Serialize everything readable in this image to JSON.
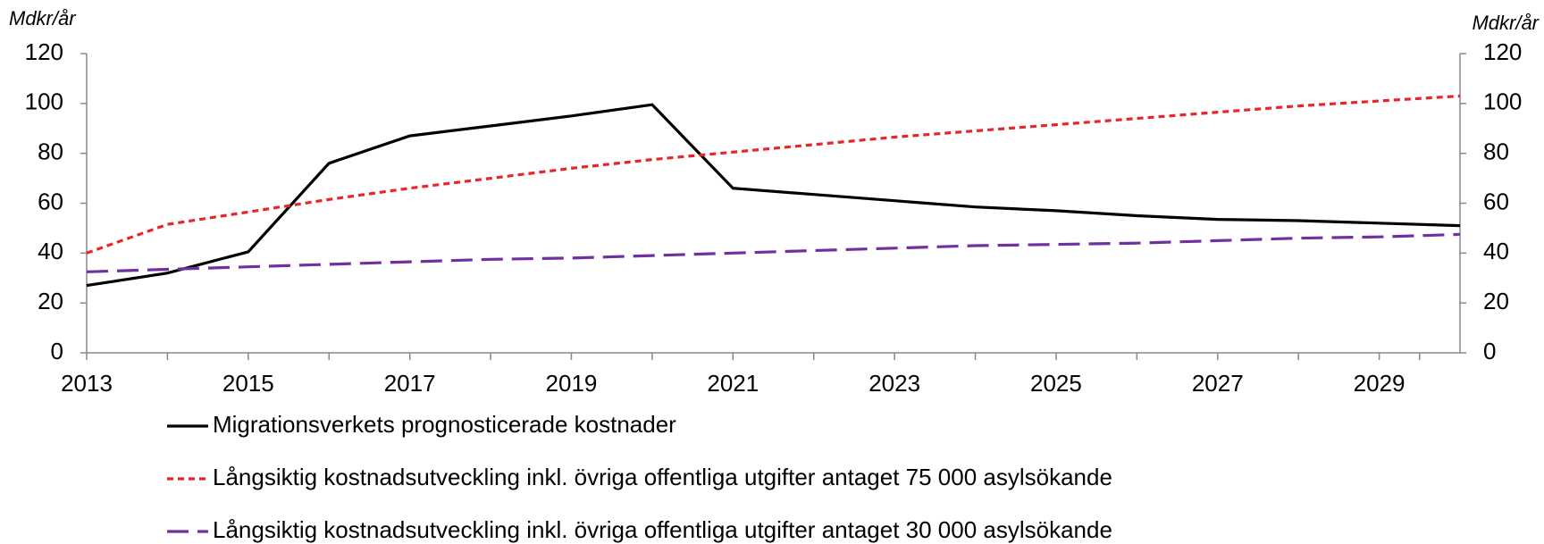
{
  "chart_data": {
    "type": "line",
    "y_label": "Mdkr/år",
    "y2_label": "Mdkr/år",
    "x": [
      2013,
      2014,
      2015,
      2016,
      2017,
      2018,
      2019,
      2020,
      2021,
      2022,
      2023,
      2024,
      2025,
      2026,
      2027,
      2028,
      2029,
      2030
    ],
    "xlim": [
      2013,
      2030
    ],
    "xticks": [
      2013,
      2015,
      2017,
      2019,
      2021,
      2023,
      2025,
      2027,
      2029
    ],
    "ylim": [
      0,
      120
    ],
    "yticks": [
      0,
      20,
      40,
      60,
      80,
      100,
      120
    ],
    "y2lim": [
      0,
      120
    ],
    "y2ticks": [
      0,
      20,
      40,
      60,
      80,
      100,
      120
    ],
    "grid": false,
    "series": [
      {
        "name": "Migrationsverkets prognosticerade kostnader",
        "color": "#000000",
        "dash": "solid",
        "values": [
          27,
          32,
          40.5,
          76,
          87,
          91,
          95,
          99.5,
          66,
          63.5,
          61,
          58.5,
          57,
          55,
          53.5,
          53,
          52,
          51
        ]
      },
      {
        "name": "Långsiktig kostnadsutveckling inkl. övriga offentliga utgifter antaget 75 000 asylsökande",
        "color": "#e8262a",
        "dash": "short",
        "values": [
          40,
          51.5,
          56.5,
          61.5,
          66,
          70,
          74,
          77.5,
          80.5,
          83.5,
          86.5,
          89,
          91.5,
          94,
          96.5,
          99,
          101,
          103
        ]
      },
      {
        "name": "Långsiktig kostnadsutveckling inkl. övriga offentliga utgifter antaget 30 000 asylsökande",
        "color": "#7030a0",
        "dash": "long",
        "values": [
          32.5,
          33.5,
          34.5,
          35.5,
          36.5,
          37.5,
          38,
          39,
          40,
          41,
          42,
          43,
          43.5,
          44,
          45,
          46,
          46.5,
          47.5
        ]
      }
    ]
  }
}
